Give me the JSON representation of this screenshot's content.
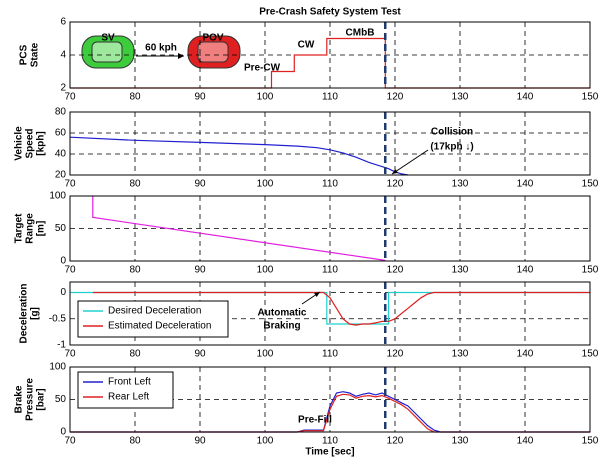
{
  "chart_data": [
    {
      "type": "line",
      "title": "Pre-Crash Safety System Test",
      "ylabel": [
        "PCS",
        "State"
      ],
      "xlim": [
        70,
        150
      ],
      "xticks": [
        70,
        80,
        90,
        100,
        110,
        120,
        130,
        140,
        150
      ],
      "ylim": [
        2,
        6
      ],
      "yticks": [
        2,
        4,
        6
      ],
      "grid": true,
      "vline": 118.5,
      "vline_color": "#1f3a6e",
      "annotations": [
        "SV",
        "POV",
        "60 kph",
        "Pre-CW",
        "CW",
        "CMbB"
      ],
      "series": [
        {
          "name": "PCS State",
          "color": "#e02020",
          "x": [
            70,
            101,
            101,
            104.5,
            104.5,
            109.5,
            109.5,
            118.5,
            118.5,
            150
          ],
          "values": [
            2,
            2,
            3,
            3,
            4,
            4,
            5,
            5,
            2,
            2
          ]
        }
      ]
    },
    {
      "type": "line",
      "ylabel": [
        "Vehicle",
        "Speed",
        "[kph]"
      ],
      "xlim": [
        70,
        150
      ],
      "xticks": [
        70,
        80,
        90,
        100,
        110,
        120,
        130,
        140,
        150
      ],
      "ylim": [
        20,
        80
      ],
      "yticks": [
        20,
        40,
        60,
        80
      ],
      "grid": true,
      "vline": 118.5,
      "vline_color": "#1f3a6e",
      "annotations": [
        "Collision",
        "(17kph ↓)"
      ],
      "series": [
        {
          "name": "Vehicle Speed",
          "color": "#2020d0",
          "x": [
            70,
            80,
            90,
            100,
            105,
            108,
            110,
            112,
            114,
            116,
            118,
            119,
            120,
            121,
            122
          ],
          "values": [
            56,
            53,
            51,
            49,
            47.5,
            46,
            44,
            41,
            37,
            32,
            28,
            26,
            23,
            21,
            20
          ]
        }
      ]
    },
    {
      "type": "line",
      "ylabel": [
        "Target",
        "Range",
        "[m]"
      ],
      "xlim": [
        70,
        150
      ],
      "xticks": [
        70,
        80,
        90,
        100,
        110,
        120,
        130,
        140,
        150
      ],
      "ylim": [
        0,
        100
      ],
      "yticks": [
        0,
        50,
        100
      ],
      "grid": true,
      "vline": 118.5,
      "vline_color": "#1f3a6e",
      "series": [
        {
          "name": "Target Range",
          "color": "#e020e0",
          "x": [
            73.5,
            73.5,
            118.5
          ],
          "values": [
            100,
            67,
            1
          ]
        }
      ]
    },
    {
      "type": "line",
      "ylabel": [
        "Deceleration",
        "[g]"
      ],
      "xlim": [
        70,
        150
      ],
      "xticks": [
        70,
        80,
        90,
        100,
        110,
        120,
        130,
        140,
        150
      ],
      "ylim": [
        -1,
        0.2
      ],
      "yticks": [
        -1,
        -0.5,
        0
      ],
      "grid": true,
      "vline": 118.5,
      "vline_color": "#1f3a6e",
      "legend": "lower left",
      "annotations": [
        "Automatic",
        "Braking"
      ],
      "series": [
        {
          "name": "Desired Deceleration",
          "color": "#20d0d0",
          "x": [
            70,
            109.5,
            109.5,
            119,
            119,
            150
          ],
          "values": [
            0,
            0,
            -0.6,
            -0.6,
            0,
            0
          ]
        },
        {
          "name": "Estimated Deceleration",
          "color": "#e02020",
          "x": [
            73.5,
            109,
            110,
            111,
            112,
            113,
            114,
            115,
            116,
            117,
            118,
            119,
            120,
            121,
            122,
            123,
            124,
            125,
            126,
            150
          ],
          "values": [
            0,
            0,
            -0.1,
            -0.3,
            -0.5,
            -0.6,
            -0.62,
            -0.6,
            -0.6,
            -0.58,
            -0.55,
            -0.55,
            -0.5,
            -0.4,
            -0.3,
            -0.2,
            -0.1,
            -0.03,
            0,
            0
          ]
        }
      ]
    },
    {
      "type": "line",
      "ylabel": [
        "Brake",
        "Pressure",
        "[bar]"
      ],
      "xlabel": "Time [sec]",
      "xlim": [
        70,
        150
      ],
      "xticks": [
        70,
        80,
        90,
        100,
        110,
        120,
        130,
        140,
        150
      ],
      "ylim": [
        0,
        100
      ],
      "yticks": [
        0,
        50,
        100
      ],
      "grid": true,
      "vline": 118.5,
      "vline_color": "#1f3a6e",
      "legend": "upper left",
      "annotations": [
        "Pre-Fill"
      ],
      "series": [
        {
          "name": "Front Left",
          "color": "#2020d0",
          "x": [
            70,
            105,
            106,
            109,
            110,
            111,
            112,
            113,
            114,
            115,
            116,
            117,
            118,
            119,
            120,
            121,
            122,
            123,
            124,
            125,
            126,
            127,
            150
          ],
          "values": [
            0,
            0,
            3,
            3,
            40,
            60,
            62,
            60,
            55,
            58,
            60,
            57,
            60,
            55,
            50,
            45,
            40,
            30,
            20,
            10,
            3,
            0,
            0
          ]
        },
        {
          "name": "Rear Left",
          "color": "#e02020",
          "x": [
            70,
            105,
            106,
            109,
            110,
            111,
            112,
            113,
            114,
            115,
            116,
            117,
            118,
            119,
            120,
            121,
            122,
            123,
            124,
            125,
            126,
            150
          ],
          "values": [
            0,
            0,
            2,
            2,
            35,
            55,
            58,
            57,
            52,
            55,
            56,
            54,
            56,
            52,
            47,
            42,
            35,
            25,
            15,
            5,
            0,
            0
          ]
        }
      ]
    }
  ]
}
